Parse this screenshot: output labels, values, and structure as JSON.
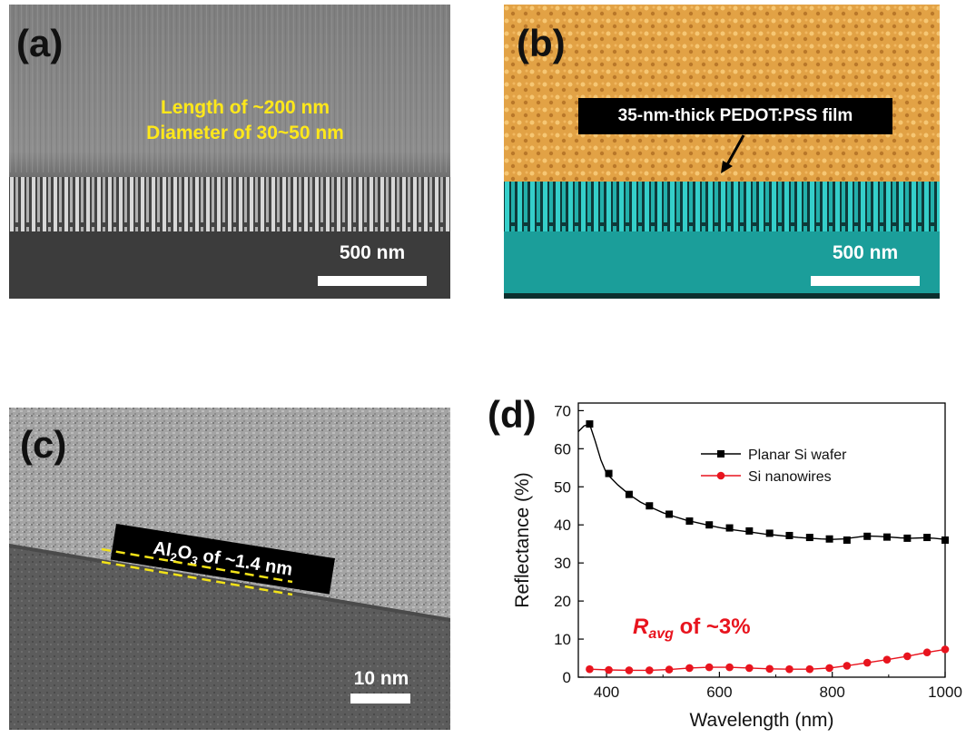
{
  "panels": {
    "a": {
      "label": "(a)",
      "annotation_line1": "Length of ~200 nm",
      "annotation_line2": "Diameter of 30~50 nm",
      "scale_label": "500 nm"
    },
    "b": {
      "label": "(b)",
      "film_label": "35-nm-thick PEDOT:PSS film",
      "scale_label": "500 nm"
    },
    "c": {
      "label": "(c)",
      "layer_text_al": "Al",
      "layer_text_sub2": "2",
      "layer_text_o": "O",
      "layer_text_sub3": "3",
      "layer_text_rest": " of ~1.4 nm",
      "scale_label": "10 nm"
    },
    "d": {
      "label": "(d)",
      "annotation_r": "R",
      "annotation_sub": "avg",
      "annotation_rest": " of ~3%"
    }
  },
  "colors": {
    "sem_gray": "#8a8a8a",
    "pedot_orange": "#e6a548",
    "si_cyan": "#1fb5b0",
    "tem_gray": "#9a9a9a",
    "annotation_yellow": "#ffe81a",
    "series_planar": "#000000",
    "series_nanowire": "#e8141e",
    "ravg_red": "#e8141e"
  },
  "chart_data": {
    "type": "line",
    "xlabel": "Wavelength (nm)",
    "ylabel": "Reflectance (%)",
    "xlim": [
      350,
      1000
    ],
    "ylim": [
      0,
      72
    ],
    "xticks": [
      400,
      600,
      800,
      1000
    ],
    "yticks": [
      0,
      10,
      20,
      30,
      40,
      50,
      60,
      70
    ],
    "grid": false,
    "legend_position": "top-right",
    "series": [
      {
        "name": "Planar Si wafer",
        "color": "#000000",
        "marker": "square",
        "x": [
          350,
          360,
          370,
          380,
          390,
          400,
          420,
          440,
          460,
          480,
          500,
          520,
          540,
          560,
          580,
          600,
          620,
          640,
          660,
          680,
          700,
          720,
          740,
          760,
          780,
          800,
          820,
          840,
          860,
          880,
          900,
          920,
          940,
          960,
          980,
          1000
        ],
        "y": [
          64.5,
          66,
          66.5,
          62,
          57,
          53.5,
          50.5,
          48,
          46,
          44.5,
          43.2,
          42.2,
          41.3,
          40.6,
          39.9,
          39.3,
          38.8,
          38.4,
          38,
          37.6,
          37.3,
          37,
          36.7,
          36.5,
          36.3,
          36.2,
          36.3,
          36.7,
          37.1,
          37,
          36.8,
          36.6,
          36.5,
          36.6,
          36.5,
          36.2
        ],
        "marker_x": [
          370,
          404,
          440,
          476,
          511,
          547,
          582,
          618,
          653,
          689,
          724,
          760,
          795,
          826,
          862,
          897,
          933,
          968,
          1000
        ],
        "marker_y": [
          66.5,
          53.5,
          48,
          45,
          42.8,
          41,
          40,
          39.2,
          38.4,
          37.8,
          37.2,
          36.7,
          36.3,
          36,
          37,
          36.8,
          36.5,
          36.7,
          36
        ]
      },
      {
        "name": "Si nanowires",
        "color": "#e8141e",
        "marker": "circle",
        "x": [
          370,
          404,
          440,
          476,
          511,
          547,
          582,
          618,
          653,
          689,
          724,
          760,
          795,
          826,
          862,
          897,
          933,
          968,
          1000
        ],
        "y": [
          2.1,
          1.9,
          1.8,
          1.8,
          2.0,
          2.4,
          2.6,
          2.6,
          2.4,
          2.2,
          2.1,
          2.1,
          2.4,
          3.0,
          3.8,
          4.6,
          5.5,
          6.5,
          7.3
        ]
      }
    ]
  }
}
